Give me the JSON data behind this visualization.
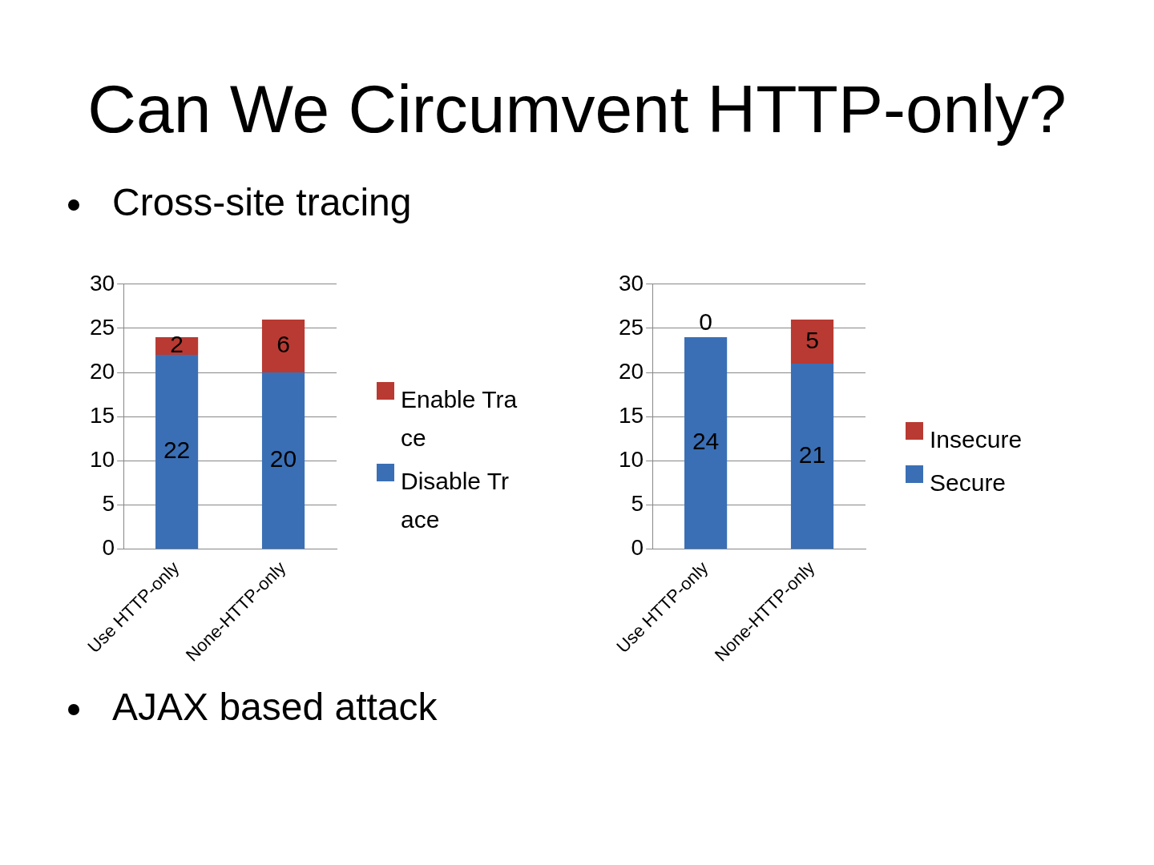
{
  "chart_data": [
    {
      "type": "bar",
      "title": "Can We Circumvent HTTP-only?",
      "subtitle": "Cross-site tracing",
      "annotations": [
        "AJAX based attack"
      ],
      "categories": [
        "Use HTTP-only",
        "None-HTTP-only"
      ],
      "stacked": true,
      "series": [
        {
          "name": "Disable Trace",
          "color": "#3a6fb5",
          "values": [
            22,
            20
          ]
        },
        {
          "name": "Enable Trace",
          "color": "#b93a32",
          "values": [
            2,
            6
          ]
        }
      ],
      "ylim": [
        0,
        30
      ],
      "yticks": [
        0,
        5,
        10,
        15,
        20,
        25,
        30
      ],
      "grid": "y",
      "legend": "right",
      "data_labels": true
    },
    {
      "type": "bar",
      "categories": [
        "Use HTTP-only",
        "None-HTTP-only"
      ],
      "stacked": true,
      "series": [
        {
          "name": "Secure",
          "color": "#3a6fb5",
          "values": [
            24,
            21
          ]
        },
        {
          "name": "Insecure",
          "color": "#b93a32",
          "values": [
            0,
            5
          ]
        }
      ],
      "ylim": [
        0,
        30
      ],
      "yticks": [
        0,
        5,
        10,
        15,
        20,
        25,
        30
      ],
      "grid": "y",
      "legend": "right",
      "data_labels": true
    }
  ]
}
